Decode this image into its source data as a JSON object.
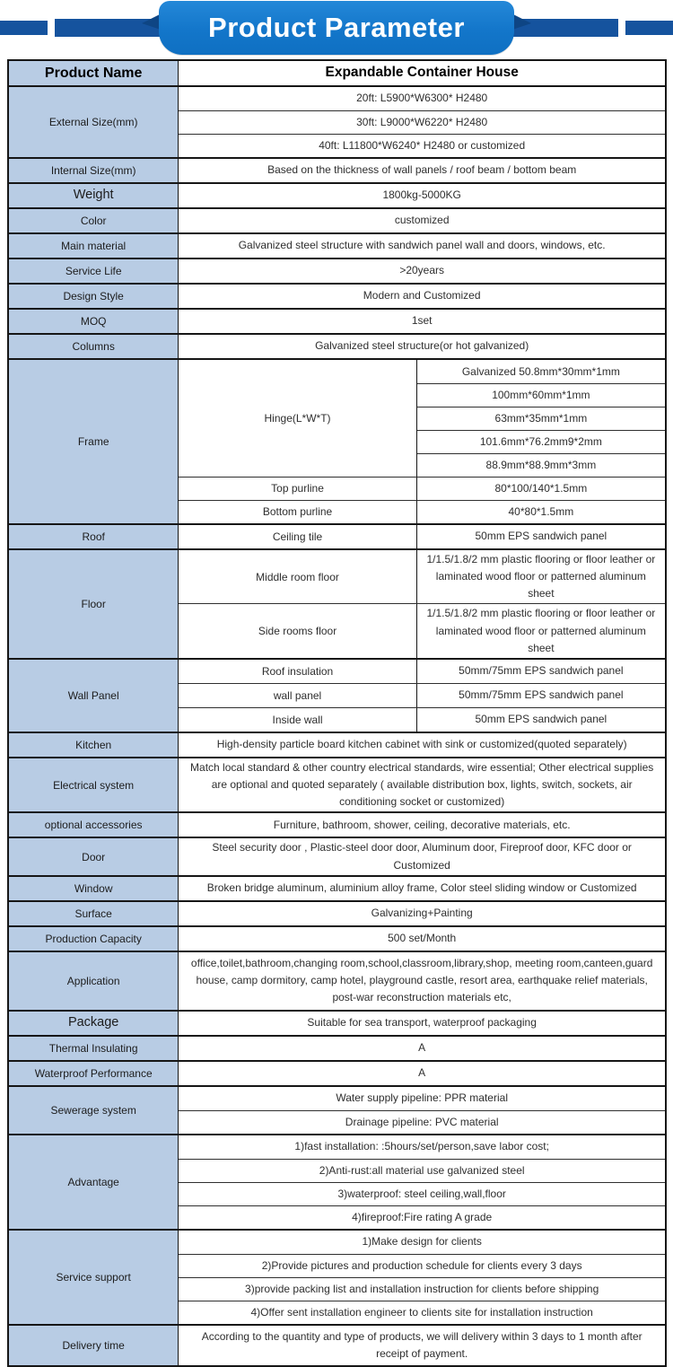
{
  "banner": {
    "title": "Product Parameter"
  },
  "colors": {
    "ribbon_blue": "#1376ca",
    "side_bar_blue": "#15539e",
    "fold_blue": "#0e4584",
    "label_bg": "#b8cce4",
    "border": "#161616",
    "title_text": "#ffffff"
  },
  "table": {
    "groups": [
      {
        "label": "Product Name",
        "rows": [
          "Expandable Container House"
        ]
      },
      {
        "label": "External Size(mm)",
        "rows": [
          "20ft: L5900*W6300* H2480",
          "30ft: L9000*W6220* H2480",
          "40ft: L11800*W6240* H2480 or customized"
        ]
      },
      {
        "label": "Internal Size(mm)",
        "rows": [
          "Based on the thickness of wall panels / roof beam / bottom beam"
        ]
      },
      {
        "label": "Weight",
        "rows": [
          "1800kg-5000KG"
        ]
      },
      {
        "label": "Color",
        "rows": [
          "customized"
        ]
      },
      {
        "label": "Main material",
        "rows": [
          "Galvanized steel structure with sandwich panel wall and doors, windows, etc."
        ]
      },
      {
        "label": "Service Life",
        "rows": [
          ">20years"
        ]
      },
      {
        "label": "Design Style",
        "rows": [
          "Modern and Customized"
        ]
      },
      {
        "label": "MOQ",
        "rows": [
          "1set"
        ]
      },
      {
        "label": "Columns",
        "rows": [
          "Galvanized steel structure(or hot galvanized)"
        ]
      },
      {
        "label": "Frame",
        "hinge_label": "Hinge(L*W*T)",
        "hinge_values": [
          "Galvanized 50.8mm*30mm*1mm",
          "100mm*60mm*1mm",
          "63mm*35mm*1mm",
          "101.6mm*76.2mm9*2mm",
          "88.9mm*88.9mm*3mm"
        ],
        "purlines": [
          {
            "mid": "Top purline",
            "value": "80*100/140*1.5mm"
          },
          {
            "mid": "Bottom purline",
            "value": "40*80*1.5mm"
          }
        ]
      },
      {
        "label": "Roof",
        "rows": [
          {
            "mid": "Ceiling tile",
            "value": "50mm EPS sandwich panel"
          }
        ]
      },
      {
        "label": "Floor",
        "rows": [
          {
            "mid": "Middle room floor",
            "value": "1/1.5/1.8/2 mm plastic flooring or floor leather or laminated wood floor or patterned aluminum sheet"
          },
          {
            "mid": "Side rooms floor",
            "value": "1/1.5/1.8/2 mm plastic flooring or floor leather or laminated wood floor or patterned aluminum sheet"
          }
        ]
      },
      {
        "label": "Wall Panel",
        "rows": [
          {
            "mid": "Roof insulation",
            "value": "50mm/75mm EPS sandwich panel"
          },
          {
            "mid": "wall panel",
            "value": "50mm/75mm EPS sandwich panel"
          },
          {
            "mid": "Inside wall",
            "value": "50mm EPS sandwich panel"
          }
        ]
      },
      {
        "label": "Kitchen",
        "rows": [
          "High-density particle board kitchen cabinet with sink or customized(quoted separately)"
        ]
      },
      {
        "label": "Electrical system",
        "rows": [
          "Match local standard & other country electrical standards, wire essential; Other electrical supplies are optional and quoted separately (  available distribution box, lights, switch, sockets, air conditioning socket or customized)"
        ]
      },
      {
        "label": "optional accessories",
        "rows": [
          "Furniture, bathroom, shower, ceiling, decorative materials, etc."
        ]
      },
      {
        "label": "Door",
        "rows": [
          "Steel security door , Plastic-steel door door, Aluminum door, Fireproof door, KFC door or Customized"
        ]
      },
      {
        "label": "Window",
        "rows": [
          "Broken bridge aluminum, aluminium alloy frame, Color steel sliding window or Customized"
        ]
      },
      {
        "label": "Surface",
        "rows": [
          "Galvanizing+Painting"
        ]
      },
      {
        "label": "Production Capacity",
        "rows": [
          "500 set/Month"
        ]
      },
      {
        "label": "Application",
        "rows": [
          "office,toilet,bathroom,changing room,school,classroom,library,shop, meeting room,canteen,guard house, camp dormitory, camp hotel, playground castle, resort area, earthquake relief materials, post-war reconstruction materials etc,"
        ]
      },
      {
        "label": "Package",
        "rows": [
          "Suitable for sea transport, waterproof packaging"
        ]
      },
      {
        "label": "Thermal Insulating",
        "rows": [
          "A"
        ]
      },
      {
        "label": "Waterproof Performance",
        "rows": [
          "A"
        ]
      },
      {
        "label": "Sewerage system",
        "rows": [
          "Water supply pipeline: PPR material",
          "Drainage pipeline: PVC material"
        ]
      },
      {
        "label": "Advantage",
        "rows": [
          "1)fast installation: :5hours/set/person,save labor cost;",
          "2)Anti-rust:all material use galvanized steel",
          "3)waterproof: steel ceiling,wall,floor",
          "4)fireproof:Fire rating A grade"
        ]
      },
      {
        "label": "Service support",
        "rows": [
          "1)Make design for clients",
          "2)Provide pictures and production schedule for clients every 3 days",
          "3)provide packing list and installation instruction for clients before shipping",
          "4)Offer sent installation engineer to clients site for installation instruction"
        ]
      },
      {
        "label": "Delivery time",
        "rows": [
          "According to the quantity and type of products, we will delivery within 3 days to 1 month after receipt of payment."
        ]
      }
    ]
  }
}
